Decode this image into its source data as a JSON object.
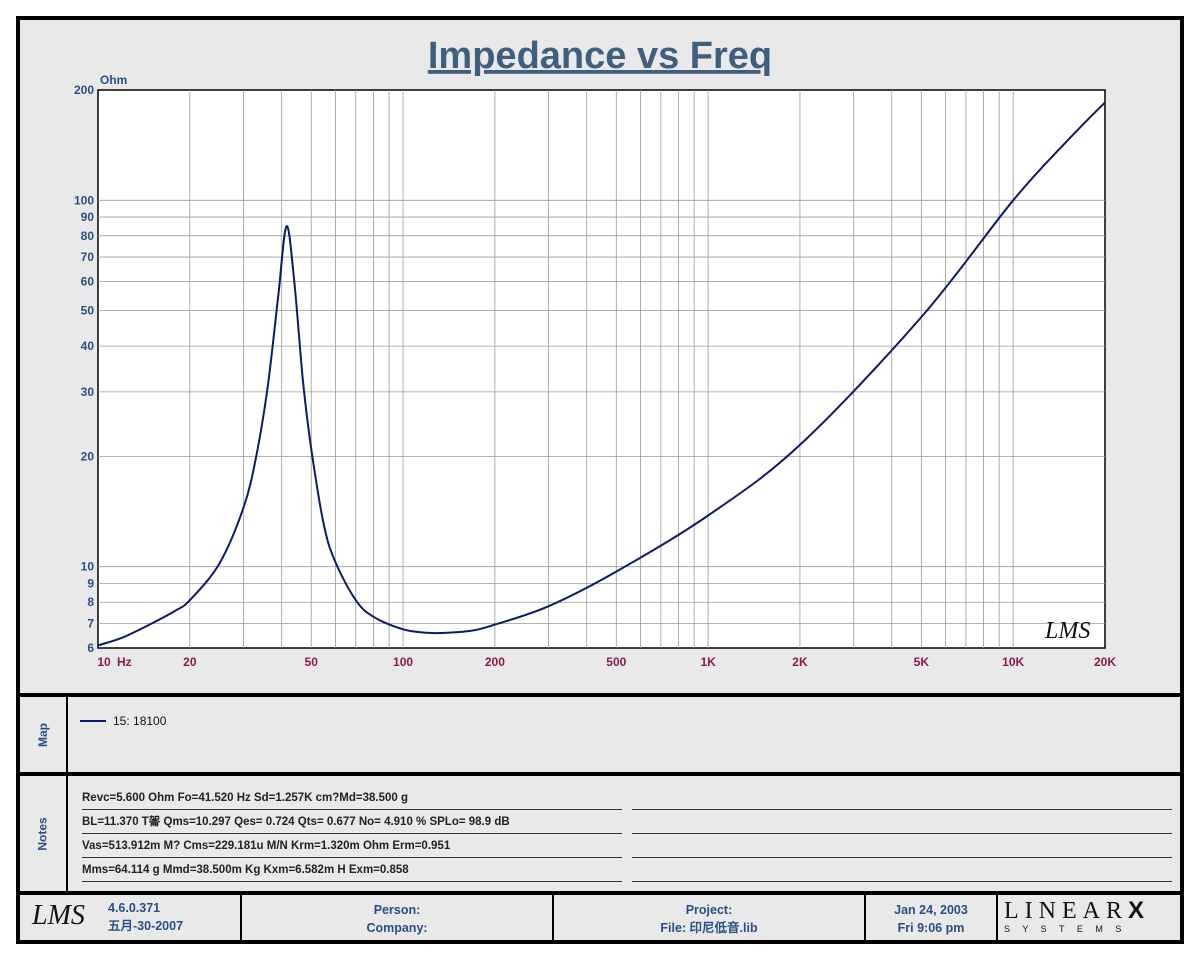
{
  "chart_data": {
    "type": "line",
    "title": "Impedance vs Freq",
    "ylabel": "Ohm",
    "xlabel": "Hz",
    "x_scale": "log",
    "y_scale": "log",
    "xlim": [
      10,
      20000
    ],
    "ylim": [
      6,
      200
    ],
    "x_tick_labels": [
      {
        "value": 10,
        "label": "10"
      },
      {
        "value": 20,
        "label": "20"
      },
      {
        "value": 50,
        "label": "50"
      },
      {
        "value": 100,
        "label": "100"
      },
      {
        "value": 200,
        "label": "200"
      },
      {
        "value": 500,
        "label": "500"
      },
      {
        "value": 1000,
        "label": "1K"
      },
      {
        "value": 2000,
        "label": "2K"
      },
      {
        "value": 5000,
        "label": "5K"
      },
      {
        "value": 10000,
        "label": "10K"
      },
      {
        "value": 20000,
        "label": "20K"
      }
    ],
    "y_tick_labels": [
      {
        "value": 6,
        "label": "6"
      },
      {
        "value": 7,
        "label": "7"
      },
      {
        "value": 8,
        "label": "8"
      },
      {
        "value": 9,
        "label": "9"
      },
      {
        "value": 10,
        "label": "10"
      },
      {
        "value": 20,
        "label": "20"
      },
      {
        "value": 30,
        "label": "30"
      },
      {
        "value": 40,
        "label": "40"
      },
      {
        "value": 50,
        "label": "50"
      },
      {
        "value": 60,
        "label": "60"
      },
      {
        "value": 70,
        "label": "70"
      },
      {
        "value": 80,
        "label": "80"
      },
      {
        "value": 90,
        "label": "90"
      },
      {
        "value": 100,
        "label": "100"
      },
      {
        "value": 200,
        "label": "200"
      }
    ],
    "grid": true,
    "series": [
      {
        "name": "15: 18100",
        "color": "#0b1a6e",
        "x": [
          10,
          12,
          15,
          18,
          20,
          25,
          30,
          33,
          36,
          39,
          41.5,
          44,
          47,
          50,
          55,
          60,
          70,
          80,
          100,
          120,
          140,
          170,
          200,
          300,
          500,
          1000,
          2000,
          5000,
          10000,
          15000,
          20000
        ],
        "y": [
          6.1,
          6.4,
          7.0,
          7.6,
          8.1,
          10.2,
          14.5,
          20.0,
          31.0,
          55.0,
          85.0,
          60.0,
          32.0,
          21.0,
          13.0,
          10.3,
          8.1,
          7.3,
          6.75,
          6.6,
          6.6,
          6.7,
          6.95,
          7.8,
          9.7,
          13.8,
          21.5,
          48.0,
          100.0,
          145.0,
          185.0
        ]
      }
    ]
  },
  "logo": {
    "text": "LMS"
  },
  "legend": {
    "items": [
      {
        "label": "15: 18100",
        "color": "#0b1a6e"
      }
    ]
  },
  "sections": {
    "map_label": "Map",
    "notes_label": "Notes"
  },
  "notes": [
    "Revc=5.600 Ohm  Fo=41.520 Hz  Sd=1.257K cm?Md=38.500 g",
    "BL=11.370 T嗧  Qms=10.297  Qes= 0.724  Qts= 0.677  No= 4.910 %  SPLo= 98.9 dB",
    "Vas=513.912m M? Cms=229.181u M/N  Krm=1.320m Ohm  Erm=0.951",
    "Mms=64.114 g  Mmd=38.500m Kg  Kxm=6.582m H  Exm=0.858"
  ],
  "footer": {
    "version": "4.6.0.371",
    "version_date": "五月-30-2007",
    "person_label": "Person:",
    "company_label": "Company:",
    "project_label": "Project:",
    "file_label": "File: 印尼低音.lib",
    "date": "Jan 24, 2003",
    "time": "Fri  9:06 pm",
    "brand_top": "LINEAR",
    "brand_x": "X",
    "brand_bottom": "S Y S T E M S"
  }
}
